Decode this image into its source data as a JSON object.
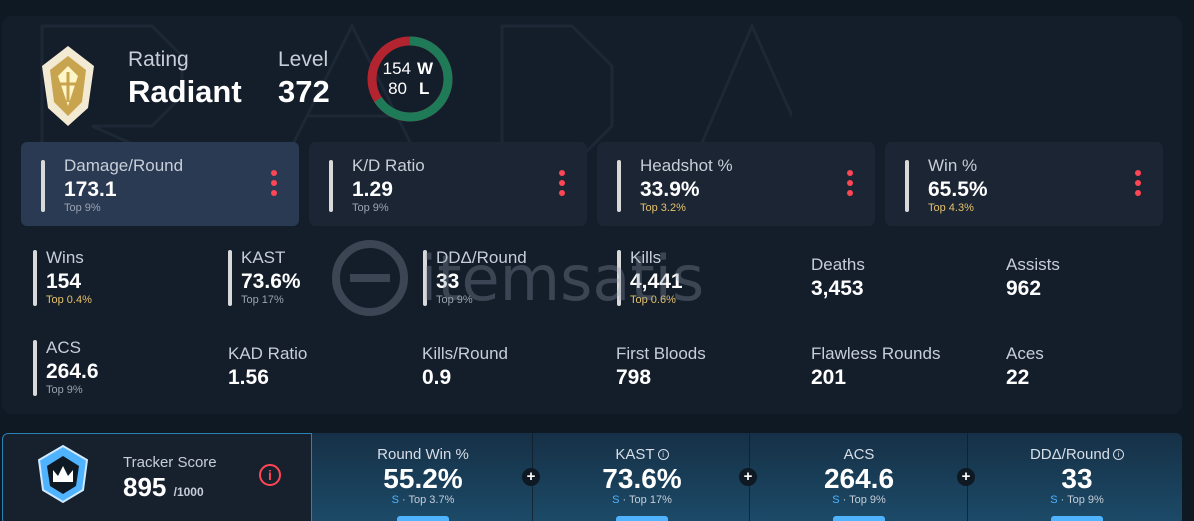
{
  "header": {
    "rating_label": "Rating",
    "rating_value": "Radiant",
    "level_label": "Level",
    "level_value": "372",
    "wins": "154",
    "wins_letter": "W",
    "losses": "80",
    "losses_letter": "L",
    "win_fraction": 0.658,
    "colors": {
      "win": "#1f7a57",
      "loss": "#b2242f",
      "rank_gold": "#e5c26b"
    },
    "rank_icon": "radiant-rank-icon"
  },
  "cards": [
    {
      "label": "Damage/Round",
      "value": "173.1",
      "top": "Top 9%",
      "gold": false,
      "active": true
    },
    {
      "label": "K/D Ratio",
      "value": "1.29",
      "top": "Top 9%",
      "gold": false,
      "active": false
    },
    {
      "label": "Headshot %",
      "value": "33.9%",
      "top": "Top 3.2%",
      "gold": true,
      "active": false
    },
    {
      "label": "Win %",
      "value": "65.5%",
      "top": "Top 4.3%",
      "gold": true,
      "active": false
    }
  ],
  "stats_row1": [
    {
      "label": "Wins",
      "value": "154",
      "top": "Top 0.4%",
      "gold": true
    },
    {
      "label": "KAST",
      "value": "73.6%",
      "top": "Top 17%",
      "gold": false
    },
    {
      "label": "DDΔ/Round",
      "value": "33",
      "top": "Top 9%",
      "gold": false
    },
    {
      "label": "Kills",
      "value": "4,441",
      "top": "Top 0.6%",
      "gold": true
    },
    {
      "label": "Deaths",
      "value": "3,453"
    },
    {
      "label": "Assists",
      "value": "962"
    }
  ],
  "stats_row2": [
    {
      "label": "ACS",
      "value": "264.6",
      "top": "Top 9%",
      "gold": false
    },
    {
      "label": "KAD Ratio",
      "value": "1.56"
    },
    {
      "label": "Kills/Round",
      "value": "0.9"
    },
    {
      "label": "First Bloods",
      "value": "798"
    },
    {
      "label": "Flawless Rounds",
      "value": "201"
    },
    {
      "label": "Aces",
      "value": "22"
    }
  ],
  "watermark": {
    "text": "itemsatis"
  },
  "tracker": {
    "label": "Tracker Score",
    "value": "895",
    "max": "/1000",
    "info": "i",
    "columns": [
      {
        "label": "Round Win %",
        "value": "55.2%",
        "grade": "S",
        "top": " · Top 3.7%",
        "info": false
      },
      {
        "label": "KAST",
        "value": "73.6%",
        "grade": "S",
        "top": " · Top 17%",
        "info": true
      },
      {
        "label": "ACS",
        "value": "264.6",
        "grade": "S",
        "top": " · Top 9%",
        "info": false
      },
      {
        "label": "DDΔ/Round",
        "value": "33",
        "grade": "S",
        "top": " · Top 9%",
        "info": true
      }
    ],
    "plus_symbol": "+"
  }
}
